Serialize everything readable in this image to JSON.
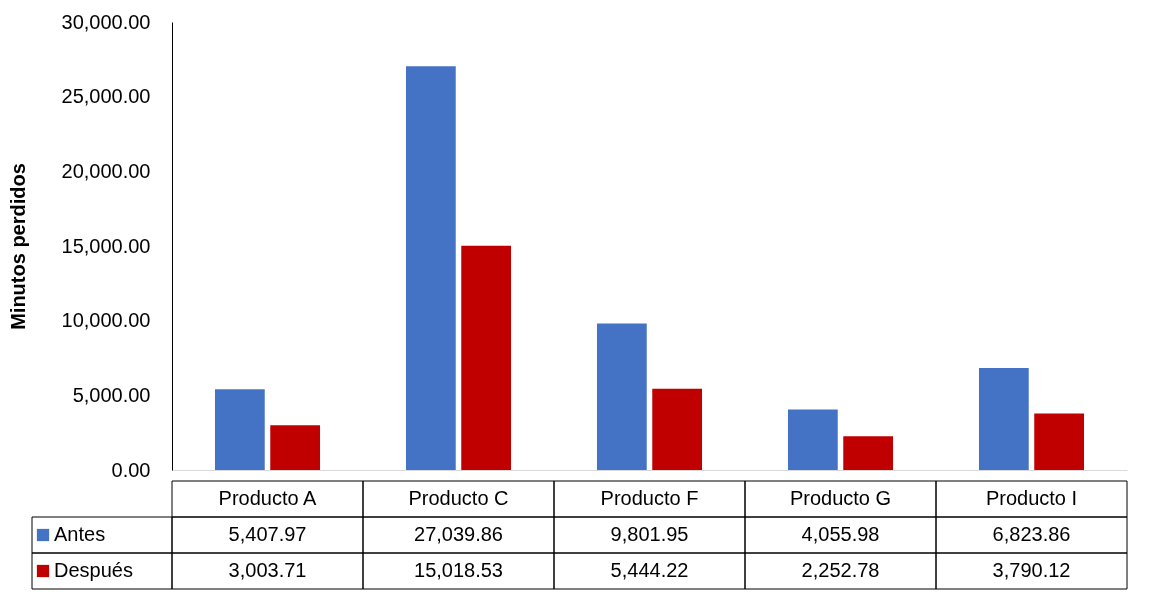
{
  "chart_data": {
    "type": "bar",
    "ylabel": "Minutos perdidos",
    "categories": [
      "Producto A",
      "Producto C",
      "Producto F",
      "Producto G",
      "Producto I"
    ],
    "series": [
      {
        "name": "Antes",
        "color": "#4472c4",
        "values": [
          5407.97,
          27039.86,
          9801.95,
          4055.98,
          6823.86
        ],
        "value_labels": [
          "5,407.97",
          "27,039.86",
          "9,801.95",
          "4,055.98",
          "6,823.86"
        ]
      },
      {
        "name": "Después",
        "color": "#c00000",
        "values": [
          3003.71,
          15018.53,
          5444.22,
          2252.78,
          3790.12
        ],
        "value_labels": [
          "3,003.71",
          "15,018.53",
          "5,444.22",
          "2,252.78",
          "3,790.12"
        ]
      }
    ],
    "ylim": [
      0,
      30000
    ],
    "yticks": [
      {
        "value": 0,
        "label": "0.00"
      },
      {
        "value": 5000,
        "label": "5,000.00"
      },
      {
        "value": 10000,
        "label": "10,000.00"
      },
      {
        "value": 15000,
        "label": "15,000.00"
      },
      {
        "value": 20000,
        "label": "20,000.00"
      },
      {
        "value": 25000,
        "label": "25,000.00"
      },
      {
        "value": 30000,
        "label": "30,000.00"
      }
    ],
    "grid": false,
    "legend": "bottom"
  }
}
